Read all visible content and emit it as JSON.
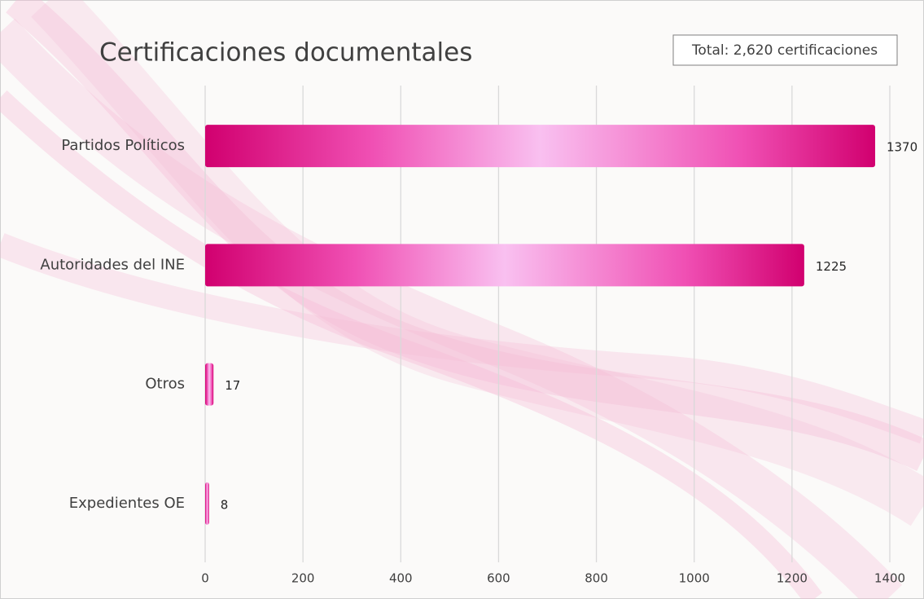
{
  "chart_data": {
    "type": "bar",
    "orientation": "horizontal",
    "title": "Certificaciones documentales",
    "annotation": "Total: 2,620 certificaciones",
    "categories": [
      "Partidos Políticos",
      "Autoridades del INE",
      "Otros",
      "Expedientes OE"
    ],
    "values": [
      1370,
      1225,
      17,
      8
    ],
    "color": "#d1006f",
    "xlim": [
      0,
      1400
    ],
    "xticks": [
      0,
      200,
      400,
      600,
      800,
      1000,
      1200,
      1400
    ],
    "grid": true
  }
}
